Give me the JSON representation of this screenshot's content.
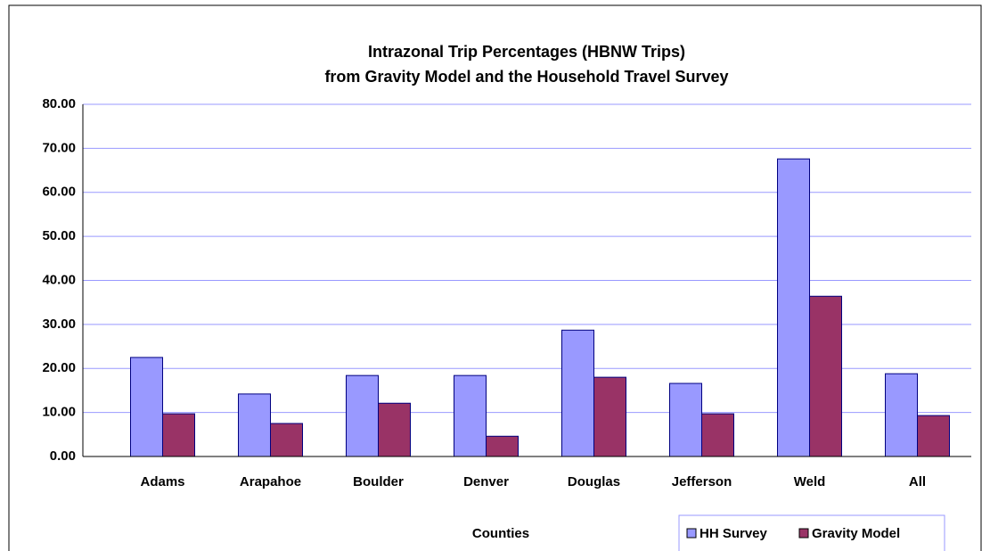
{
  "chart_data": {
    "type": "bar",
    "title": [
      "Intrazonal Trip Percentages (HBNW Trips)",
      "from Gravity Model and the Household Travel Survey"
    ],
    "x_label": "Counties",
    "categories": [
      "Adams",
      "Arapahoe",
      "Boulder",
      "Denver",
      "Douglas",
      "Jefferson",
      "Weld",
      "All"
    ],
    "series": [
      {
        "name": "HH Survey",
        "color": "#9999ff",
        "values": [
          22.5,
          14.2,
          18.4,
          18.4,
          28.7,
          16.6,
          67.6,
          18.8
        ]
      },
      {
        "name": "Gravity Model",
        "color": "#993366",
        "values": [
          9.7,
          7.5,
          12.1,
          4.6,
          18.0,
          9.7,
          36.4,
          9.3
        ]
      }
    ],
    "ylim": [
      0,
      80
    ],
    "yticks": [
      {
        "value": 0,
        "label": "0.00"
      },
      {
        "value": 10,
        "label": "10.00"
      },
      {
        "value": 20,
        "label": "20.00"
      },
      {
        "value": 30,
        "label": "30.00"
      },
      {
        "value": 40,
        "label": "40.00"
      },
      {
        "value": 50,
        "label": "50.00"
      },
      {
        "value": 60,
        "label": "60.00"
      },
      {
        "value": 70,
        "label": "70.00"
      },
      {
        "value": 80,
        "label": "80.00"
      }
    ],
    "grid": true
  }
}
